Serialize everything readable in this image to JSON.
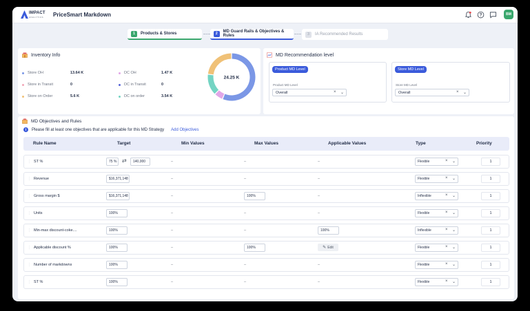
{
  "header": {
    "logo_text": "IMPACT",
    "logo_sub": "ANALYTICS",
    "app_title": "PriceSmart Markdown",
    "avatar_initials": "BM",
    "icons": [
      "bell-icon",
      "help-icon",
      "chat-icon"
    ]
  },
  "steps": [
    {
      "num": "1",
      "label": "Products & Stores",
      "state": "done",
      "color": "#3aa76d"
    },
    {
      "num": "2",
      "label": "MD Guard Rails & Objectives & Rules",
      "state": "active",
      "color": "#3b5bdb"
    },
    {
      "num": "3",
      "label": "IA Recommended Results",
      "state": "pending",
      "color": "#c5cad6"
    }
  ],
  "inventory": {
    "title": "Inventory Info",
    "items": [
      {
        "label": "Store OH",
        "value": "13.64 K",
        "color": "#7b97e6"
      },
      {
        "label": "DC OH",
        "value": "1.47 K",
        "color": "#e1a7e8"
      },
      {
        "label": "Store in Transit",
        "value": "0",
        "color": "#f2a7b8"
      },
      {
        "label": "DC in Transit",
        "value": "0",
        "color": "#5865d8"
      },
      {
        "label": "Store on Order",
        "value": "5.6 K",
        "color": "#f0c177"
      },
      {
        "label": "DC on order",
        "value": "3.54 K",
        "color": "#74d4c3"
      }
    ],
    "donut_total": "24.25 K"
  },
  "md_recommendation": {
    "title": "MD Recommendation level",
    "product": {
      "pill": "Product MD Level",
      "label": "Product MD Level",
      "value": "Overall"
    },
    "store": {
      "pill": "Store MD Level",
      "label": "Store MD Level",
      "value": "Overall"
    }
  },
  "objectives": {
    "title": "MD Objectives and Rules",
    "info": "Please fill at least one objectives that are applicable for this MD Strategy",
    "add_link": "Add Objectives",
    "columns": [
      "Rule Name",
      "Target",
      "Min Values",
      "Max Values",
      "Applicable Values",
      "Type",
      "Priority"
    ],
    "rows": [
      {
        "name": "ST %",
        "target": "75 %",
        "target2": "140,000",
        "min": "–",
        "max": "–",
        "applicable": "–",
        "type": "Flexible",
        "priority": "1"
      },
      {
        "name": "Revenue",
        "target": "$16,371,148",
        "min": "–",
        "max": "–",
        "applicable": "–",
        "type": "Flexible",
        "priority": "1"
      },
      {
        "name": "Gross margin $",
        "target": "$16,371,148",
        "min": "–",
        "max": "100%",
        "applicable": "–",
        "type": "Inflexible",
        "priority": "1"
      },
      {
        "name": "Units",
        "target": "100%",
        "min": "–",
        "max": "–",
        "applicable": "–",
        "type": "Flexible",
        "priority": "1"
      },
      {
        "name": "Min-max discount-coke....",
        "target": "100%",
        "min": "–",
        "max": "–",
        "applicable": "100%",
        "type": "Inflexible",
        "priority": "1"
      },
      {
        "name": "Applicable discount  %",
        "target": "100%",
        "min": "–",
        "max": "100%",
        "applicable": "Edit",
        "type": "Flexible",
        "priority": "1"
      },
      {
        "name": "Number of markdowns",
        "target": "100%",
        "min": "–",
        "max": "–",
        "applicable": "–",
        "type": "Flexible",
        "priority": "1"
      },
      {
        "name": "ST %",
        "target": "100%",
        "min": "–",
        "max": "–",
        "applicable": "–",
        "type": "Flexible",
        "priority": "1"
      }
    ]
  }
}
